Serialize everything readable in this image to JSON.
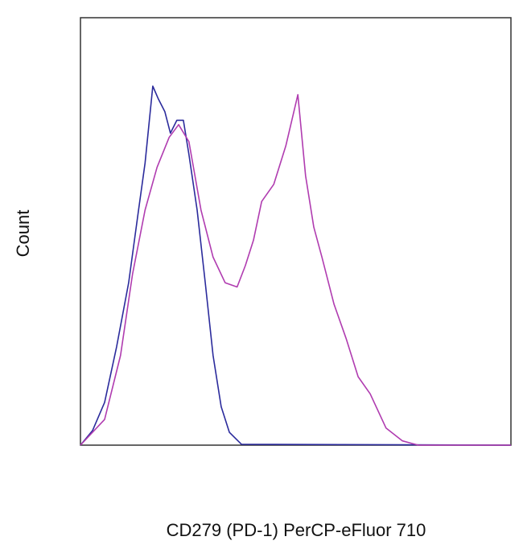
{
  "chart_data": {
    "type": "line",
    "ylabel": "Count",
    "xlabel": "CD279 (PD-1) PerCP-eFluor 710",
    "xlim": [
      0,
      100
    ],
    "ylim": [
      0,
      100
    ],
    "series": [
      {
        "color": "#2b2b9c",
        "x": [
          0,
          2.8,
          5.6,
          8.4,
          11.2,
          13.5,
          15,
          16.8,
          18.1,
          19.6,
          20.9,
          22.4,
          23.9,
          25.2,
          27.1,
          29,
          30.8,
          32.7,
          34.6,
          37.4,
          100
        ],
        "values": [
          0,
          3.4,
          10,
          23,
          38,
          55,
          66,
          84,
          81,
          78,
          73,
          76,
          76,
          68,
          55,
          38,
          21,
          9,
          3,
          0.2,
          0
        ]
      },
      {
        "color": "#b03cb0",
        "x": [
          0,
          5.6,
          9.3,
          12.1,
          15,
          17.8,
          20.6,
          22.8,
          25.2,
          28,
          30.8,
          33.6,
          36.4,
          38.3,
          40.2,
          42.1,
          44.9,
          47.7,
          50.5,
          52.3,
          54.2,
          56.1,
          58.9,
          61.7,
          64.5,
          67.3,
          71,
          74.8,
          78.5,
          100
        ],
        "values": [
          0,
          6,
          21,
          40,
          55,
          65,
          72,
          75,
          71,
          55,
          44,
          38,
          37,
          42,
          48,
          57,
          61,
          70,
          82,
          63,
          51,
          44,
          33,
          25,
          16,
          12,
          4,
          1,
          0,
          0
        ]
      }
    ]
  }
}
